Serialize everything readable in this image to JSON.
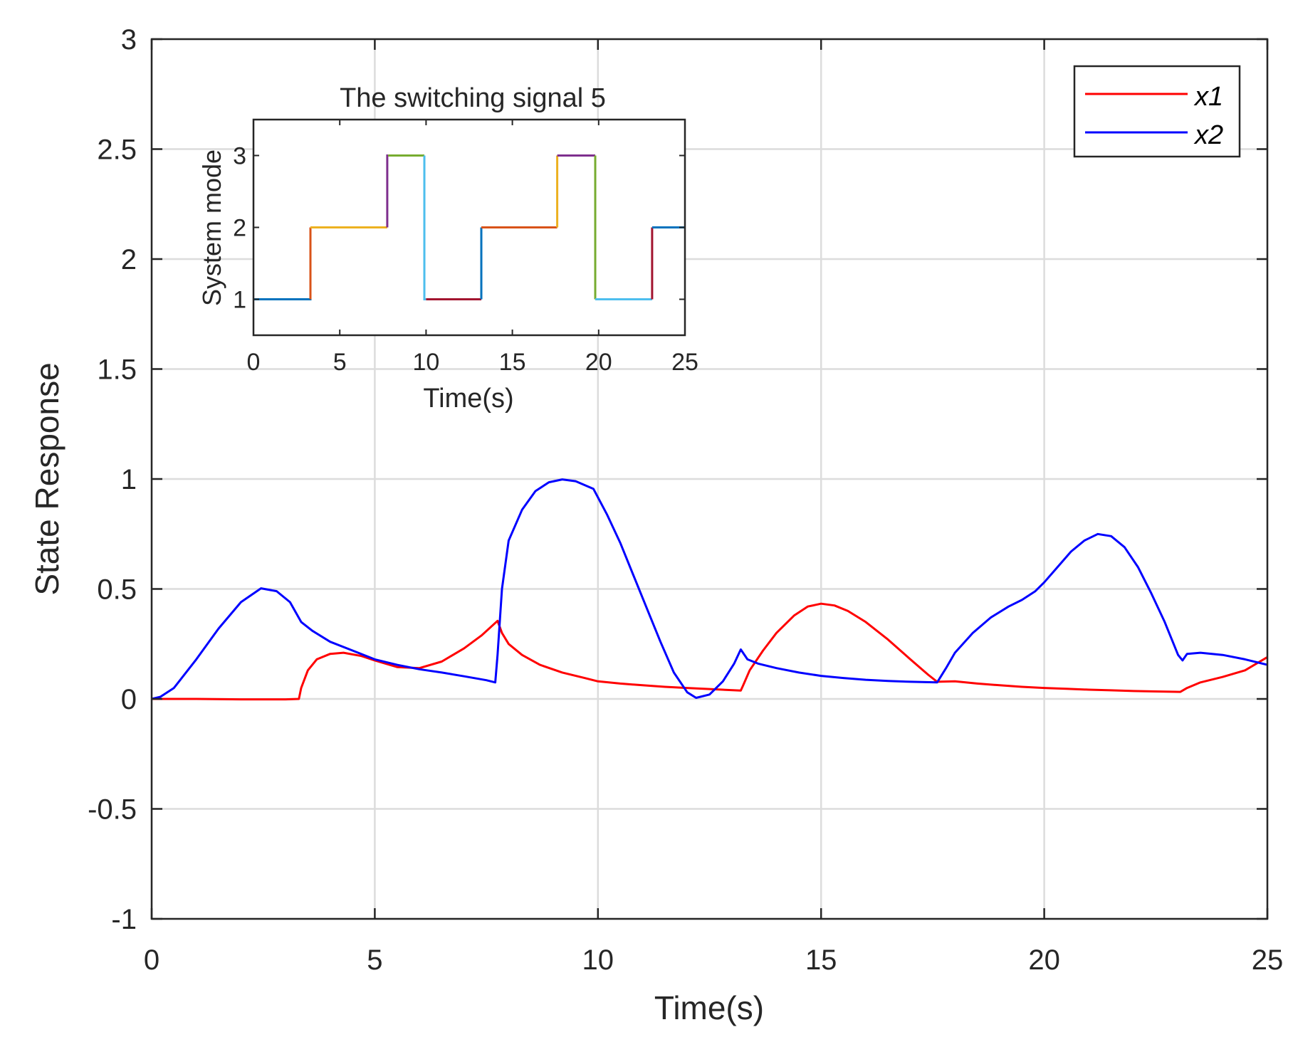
{
  "chart_data": [
    {
      "type": "line",
      "title": "",
      "xlabel": "Time(s)",
      "ylabel": "State Response",
      "xlim": [
        0,
        25
      ],
      "ylim": [
        -1,
        3
      ],
      "xticks": [
        0,
        5,
        10,
        15,
        20,
        25
      ],
      "yticks": [
        -1,
        -0.5,
        0,
        0.5,
        1,
        1.5,
        2,
        2.5,
        3
      ],
      "xtick_labels": [
        "0",
        "5",
        "10",
        "15",
        "20",
        "25"
      ],
      "ytick_labels": [
        "-1",
        "-0.5",
        "0",
        "0.5",
        "1",
        "1.5",
        "2",
        "2.5",
        "3"
      ],
      "grid": true,
      "legend_position": "top-right",
      "series": [
        {
          "name": "x1",
          "color": "#ff0000",
          "points": [
            [
              0,
              0
            ],
            [
              1,
              0
            ],
            [
              2,
              -0.002
            ],
            [
              3,
              -0.002
            ],
            [
              3.3,
              0
            ],
            [
              3.35,
              0.05
            ],
            [
              3.5,
              0.13
            ],
            [
              3.7,
              0.18
            ],
            [
              4,
              0.205
            ],
            [
              4.3,
              0.21
            ],
            [
              4.7,
              0.195
            ],
            [
              5,
              0.175
            ],
            [
              5.5,
              0.145
            ],
            [
              6,
              0.14
            ],
            [
              6.5,
              0.17
            ],
            [
              7,
              0.23
            ],
            [
              7.4,
              0.29
            ],
            [
              7.75,
              0.355
            ],
            [
              7.85,
              0.3
            ],
            [
              8,
              0.25
            ],
            [
              8.3,
              0.2
            ],
            [
              8.7,
              0.155
            ],
            [
              9.2,
              0.12
            ],
            [
              9.7,
              0.095
            ],
            [
              10,
              0.08
            ],
            [
              10.5,
              0.07
            ],
            [
              11,
              0.062
            ],
            [
              11.5,
              0.055
            ],
            [
              12,
              0.05
            ],
            [
              12.5,
              0.045
            ],
            [
              13.2,
              0.038
            ],
            [
              13.25,
              0.06
            ],
            [
              13.4,
              0.13
            ],
            [
              13.7,
              0.22
            ],
            [
              14,
              0.3
            ],
            [
              14.4,
              0.38
            ],
            [
              14.7,
              0.42
            ],
            [
              15,
              0.433
            ],
            [
              15.3,
              0.425
            ],
            [
              15.6,
              0.4
            ],
            [
              16,
              0.35
            ],
            [
              16.5,
              0.27
            ],
            [
              17,
              0.18
            ],
            [
              17.4,
              0.11
            ],
            [
              17.6,
              0.078
            ],
            [
              18,
              0.08
            ],
            [
              18.5,
              0.07
            ],
            [
              19,
              0.062
            ],
            [
              19.5,
              0.055
            ],
            [
              20,
              0.05
            ],
            [
              20.5,
              0.046
            ],
            [
              21,
              0.042
            ],
            [
              21.5,
              0.039
            ],
            [
              22,
              0.036
            ],
            [
              22.5,
              0.034
            ],
            [
              23.05,
              0.032
            ],
            [
              23.2,
              0.05
            ],
            [
              23.5,
              0.075
            ],
            [
              24,
              0.1
            ],
            [
              24.5,
              0.13
            ],
            [
              25,
              0.19
            ]
          ]
        },
        {
          "name": "x2",
          "color": "#0000ff",
          "points": [
            [
              0,
              0
            ],
            [
              0.2,
              0.01
            ],
            [
              0.5,
              0.05
            ],
            [
              1,
              0.18
            ],
            [
              1.5,
              0.32
            ],
            [
              2,
              0.44
            ],
            [
              2.45,
              0.503
            ],
            [
              2.8,
              0.49
            ],
            [
              3.1,
              0.44
            ],
            [
              3.35,
              0.35
            ],
            [
              3.6,
              0.31
            ],
            [
              4,
              0.26
            ],
            [
              4.5,
              0.22
            ],
            [
              5,
              0.18
            ],
            [
              5.5,
              0.155
            ],
            [
              6,
              0.135
            ],
            [
              6.5,
              0.12
            ],
            [
              7,
              0.103
            ],
            [
              7.5,
              0.085
            ],
            [
              7.7,
              0.075
            ],
            [
              7.75,
              0.2
            ],
            [
              7.85,
              0.5
            ],
            [
              8,
              0.72
            ],
            [
              8.3,
              0.86
            ],
            [
              8.6,
              0.945
            ],
            [
              8.9,
              0.985
            ],
            [
              9.2,
              0.998
            ],
            [
              9.5,
              0.99
            ],
            [
              9.9,
              0.955
            ],
            [
              10.2,
              0.84
            ],
            [
              10.5,
              0.71
            ],
            [
              10.8,
              0.56
            ],
            [
              11.1,
              0.41
            ],
            [
              11.4,
              0.26
            ],
            [
              11.7,
              0.12
            ],
            [
              12,
              0.03
            ],
            [
              12.2,
              0.005
            ],
            [
              12.5,
              0.02
            ],
            [
              12.8,
              0.08
            ],
            [
              13.05,
              0.16
            ],
            [
              13.2,
              0.225
            ],
            [
              13.35,
              0.18
            ],
            [
              13.6,
              0.16
            ],
            [
              14,
              0.14
            ],
            [
              14.5,
              0.12
            ],
            [
              15,
              0.105
            ],
            [
              15.5,
              0.095
            ],
            [
              16,
              0.087
            ],
            [
              16.5,
              0.082
            ],
            [
              17,
              0.078
            ],
            [
              17.6,
              0.075
            ],
            [
              17.8,
              0.14
            ],
            [
              18,
              0.21
            ],
            [
              18.4,
              0.3
            ],
            [
              18.8,
              0.37
            ],
            [
              19.2,
              0.42
            ],
            [
              19.5,
              0.45
            ],
            [
              19.8,
              0.49
            ],
            [
              20,
              0.53
            ],
            [
              20.3,
              0.6
            ],
            [
              20.6,
              0.67
            ],
            [
              20.9,
              0.72
            ],
            [
              21.2,
              0.75
            ],
            [
              21.5,
              0.74
            ],
            [
              21.8,
              0.69
            ],
            [
              22.1,
              0.6
            ],
            [
              22.4,
              0.48
            ],
            [
              22.7,
              0.35
            ],
            [
              23.0,
              0.2
            ],
            [
              23.1,
              0.175
            ],
            [
              23.2,
              0.205
            ],
            [
              23.5,
              0.21
            ],
            [
              24,
              0.2
            ],
            [
              24.5,
              0.18
            ],
            [
              25,
              0.155
            ]
          ]
        }
      ]
    },
    {
      "type": "line",
      "title": "The switching signal 5",
      "xlabel": "Time(s)",
      "ylabel": "System mode",
      "xlim": [
        0,
        25
      ],
      "ylim": [
        0.5,
        3.5
      ],
      "xticks": [
        0,
        5,
        10,
        15,
        20,
        25
      ],
      "yticks": [
        1,
        2,
        3
      ],
      "xtick_labels": [
        "0",
        "5",
        "10",
        "15",
        "20",
        "25"
      ],
      "ytick_labels": [
        "1",
        "2",
        "3"
      ],
      "grid": false,
      "segments": [
        {
          "x": [
            0,
            3.3,
            3.3
          ],
          "y": [
            1,
            1,
            2
          ],
          "color": "#0072bd"
        },
        {
          "x": [
            3.3,
            3.3
          ],
          "y": [
            1,
            2
          ],
          "color": "#d95319"
        },
        {
          "x": [
            3.3,
            7.75
          ],
          "y": [
            2,
            2
          ],
          "color": "#edb120"
        },
        {
          "x": [
            7.75,
            7.75,
            7.8
          ],
          "y": [
            2,
            3,
            3
          ],
          "color": "#7e2f8e"
        },
        {
          "x": [
            7.8,
            9.9
          ],
          "y": [
            3,
            3
          ],
          "color": "#77ac30"
        },
        {
          "x": [
            9.9,
            9.9,
            10
          ],
          "y": [
            3,
            1,
            1
          ],
          "color": "#4dbeee"
        },
        {
          "x": [
            10,
            13.2
          ],
          "y": [
            1,
            1
          ],
          "color": "#a2142f"
        },
        {
          "x": [
            13.2,
            13.2
          ],
          "y": [
            1,
            2
          ],
          "color": "#0072bd"
        },
        {
          "x": [
            13.2,
            17.6
          ],
          "y": [
            2,
            2
          ],
          "color": "#d95319"
        },
        {
          "x": [
            17.6,
            17.6
          ],
          "y": [
            2,
            3
          ],
          "color": "#edb120"
        },
        {
          "x": [
            17.6,
            19.8
          ],
          "y": [
            3,
            3
          ],
          "color": "#7e2f8e"
        },
        {
          "x": [
            19.8,
            19.8
          ],
          "y": [
            3,
            1
          ],
          "color": "#77ac30"
        },
        {
          "x": [
            19.8,
            23.1
          ],
          "y": [
            1,
            1
          ],
          "color": "#4dbeee"
        },
        {
          "x": [
            23.1,
            23.1
          ],
          "y": [
            1,
            2
          ],
          "color": "#a2142f"
        },
        {
          "x": [
            23.1,
            25
          ],
          "y": [
            2,
            2
          ],
          "color": "#0072bd"
        }
      ]
    }
  ]
}
